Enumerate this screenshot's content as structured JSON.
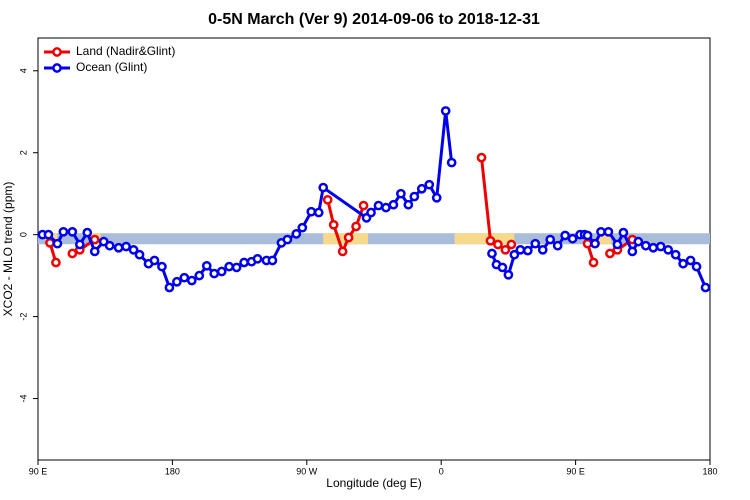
{
  "chart_data": {
    "type": "line",
    "title": "0-5N March (Ver 9)   2014-09-06 to 2018-12-31",
    "x_label": "Longitude (deg E)",
    "y_label": "XCO2 - MLO trend (ppm)",
    "xlim": [
      90,
      540
    ],
    "xticks": [
      {
        "value": 90,
        "label": "90 E"
      },
      {
        "value": 180,
        "label": "180"
      },
      {
        "value": 270,
        "label": "90 W"
      },
      {
        "value": 360,
        "label": "0"
      },
      {
        "value": 450,
        "label": "90 E"
      },
      {
        "value": 540,
        "label": "180"
      }
    ],
    "ylim": [
      -5.5,
      4.8
    ],
    "yticks": [
      -4,
      -2,
      0,
      2,
      4
    ],
    "grid": false,
    "legend": "top-left",
    "band": {
      "value": -0.1,
      "color": "#a9bcd9",
      "highlight_color": "#f7d98b",
      "highlight_ranges": [
        [
          95,
          103
        ],
        [
          125,
          132
        ],
        [
          281,
          311
        ],
        [
          369,
          409
        ],
        [
          464,
          474
        ]
      ]
    },
    "series": [
      {
        "name": "Land (Nadir&Glint)",
        "color": "#ee0000",
        "x": [
          98,
          102,
          null,
          113,
          118,
          128,
          null,
          284,
          288,
          294,
          298,
          303,
          308,
          null,
          387,
          393,
          398,
          403,
          407,
          null,
          458,
          462,
          null,
          473,
          478,
          488
        ],
        "values": [
          -0.2,
          -0.68,
          null,
          -0.46,
          -0.37,
          -0.12,
          null,
          0.85,
          0.24,
          -0.41,
          -0.07,
          0.2,
          0.71,
          null,
          1.88,
          -0.15,
          -0.24,
          -0.37,
          -0.24,
          null,
          -0.22,
          -0.68,
          null,
          -0.46,
          -0.37,
          -0.12
        ]
      },
      {
        "name": "Ocean (Glint)",
        "color": "#0000ee",
        "x": [
          93,
          97,
          103,
          107,
          113,
          118,
          123,
          128,
          134,
          138,
          144,
          149,
          154,
          158,
          164,
          168,
          173,
          178,
          183,
          188,
          193,
          198,
          203,
          208,
          213,
          218,
          223,
          228,
          233,
          237,
          243,
          247,
          253,
          257,
          263,
          267,
          273,
          278,
          281,
          310,
          313,
          318,
          323,
          328,
          333,
          338,
          342,
          347,
          352,
          357,
          363,
          367,
          null,
          394,
          397,
          401,
          405,
          409,
          413,
          418,
          423,
          428,
          433,
          438,
          443,
          448,
          453,
          456,
          458,
          463,
          467,
          472,
          478,
          482,
          488,
          492,
          497,
          502,
          507,
          512,
          517,
          522,
          527,
          531,
          537
        ],
        "values": [
          0,
          0,
          -0.22,
          0.07,
          0.07,
          -0.24,
          0.05,
          -0.41,
          -0.17,
          -0.27,
          -0.32,
          -0.29,
          -0.37,
          -0.49,
          -0.71,
          -0.63,
          -0.78,
          -1.29,
          -1.15,
          -1.05,
          -1.12,
          -1.0,
          -0.76,
          -0.95,
          -0.9,
          -0.78,
          -0.8,
          -0.68,
          -0.66,
          -0.59,
          -0.63,
          -0.63,
          -0.2,
          -0.12,
          0.02,
          0.17,
          0.56,
          0.54,
          1.15,
          0.41,
          0.54,
          0.71,
          0.66,
          0.73,
          1.0,
          0.73,
          0.93,
          1.12,
          1.22,
          0.9,
          3.02,
          1.76,
          null,
          -0.46,
          -0.73,
          -0.8,
          -0.98,
          -0.49,
          -0.37,
          -0.39,
          -0.22,
          -0.37,
          -0.12,
          -0.27,
          -0.02,
          -0.1,
          0,
          0,
          -0.02,
          -0.22,
          0.07,
          0.07,
          -0.24,
          0.05,
          -0.41,
          -0.17,
          -0.27,
          -0.32,
          -0.29,
          -0.37,
          -0.49,
          -0.71,
          -0.63,
          -0.78,
          -1.29
        ]
      }
    ]
  }
}
